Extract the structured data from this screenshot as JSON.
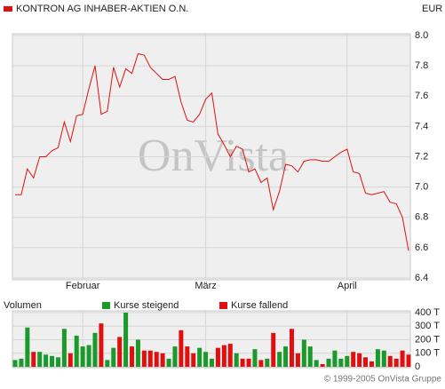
{
  "chart_data": [
    {
      "type": "line",
      "unit": "EUR",
      "categories": [
        null,
        null,
        null,
        null,
        null,
        null,
        null,
        null,
        null,
        null,
        null,
        "Februar",
        null,
        null,
        null,
        null,
        null,
        null,
        null,
        null,
        null,
        null,
        null,
        null,
        null,
        null,
        null,
        null,
        null,
        null,
        null,
        "März",
        null,
        null,
        null,
        null,
        null,
        null,
        null,
        null,
        null,
        null,
        null,
        null,
        null,
        null,
        null,
        null,
        null,
        null,
        null,
        null,
        null,
        null,
        "April",
        null,
        null,
        null,
        null,
        null,
        null,
        null,
        null,
        null,
        null
      ],
      "series": [
        {
          "name": "KONTRON AG INHABER-AKTIEN O.N.",
          "color": "#e01010",
          "values": [
            6.95,
            6.95,
            7.12,
            7.06,
            7.2,
            7.2,
            7.24,
            7.26,
            7.43,
            7.3,
            7.47,
            7.48,
            7.65,
            7.8,
            7.48,
            7.5,
            7.79,
            7.66,
            7.78,
            7.75,
            7.88,
            7.87,
            7.79,
            7.75,
            7.71,
            7.71,
            7.73,
            7.56,
            7.44,
            7.43,
            7.48,
            7.58,
            7.62,
            7.35,
            7.28,
            7.2,
            7.27,
            7.25,
            7.1,
            7.12,
            7.03,
            7.06,
            6.85,
            6.97,
            7.15,
            7.14,
            7.1,
            7.17,
            7.18,
            7.18,
            7.17,
            7.17,
            7.2,
            7.23,
            7.25,
            7.1,
            7.09,
            6.96,
            6.95,
            6.96,
            6.97,
            6.9,
            6.89,
            6.8,
            6.58
          ]
        }
      ],
      "ylim": [
        6.4,
        8.0
      ],
      "yticks": [
        6.4,
        6.6,
        6.8,
        {
          "value": 7,
          "label": "7.0"
        },
        7.2,
        7.4,
        7.6,
        7.8,
        {
          "value": 8,
          "label": "8.0"
        }
      ],
      "grid": true
    },
    {
      "type": "bar",
      "title": "Volumen",
      "series": [
        {
          "name": "Kurse steigend",
          "color": "#1a9a2a",
          "values": [
            50,
            60,
            290,
            null,
            110,
            90,
            80,
            70,
            280,
            null,
            230,
            150,
            160,
            250,
            null,
            50,
            140,
            null,
            400,
            null,
            200,
            null,
            null,
            null,
            null,
            60,
            150,
            null,
            null,
            null,
            140,
            110,
            60,
            null,
            null,
            null,
            100,
            null,
            null,
            130,
            null,
            60,
            null,
            110,
            150,
            null,
            null,
            200,
            150,
            50,
            null,
            60,
            120,
            60,
            80,
            null,
            null,
            null,
            null,
            130,
            120,
            null,
            null,
            null,
            null
          ]
        },
        {
          "name": "Kurse fallend",
          "color": "#e01010",
          "values": [
            null,
            null,
            null,
            110,
            null,
            null,
            null,
            null,
            null,
            100,
            null,
            null,
            null,
            null,
            320,
            null,
            null,
            220,
            null,
            150,
            null,
            120,
            120,
            110,
            100,
            null,
            null,
            270,
            150,
            100,
            null,
            null,
            null,
            140,
            160,
            170,
            null,
            60,
            60,
            null,
            50,
            null,
            250,
            null,
            null,
            280,
            100,
            null,
            null,
            null,
            20,
            null,
            null,
            null,
            null,
            110,
            100,
            70,
            40,
            null,
            null,
            80,
            60,
            120,
            90
          ]
        }
      ],
      "ylim": [
        0,
        400
      ],
      "yticks": [
        0,
        {
          "value": 100,
          "label": "100 T"
        },
        {
          "value": 200,
          "label": "200 T"
        },
        {
          "value": 300,
          "label": "300 T"
        },
        {
          "value": 400,
          "label": "400 T"
        }
      ],
      "grid": true
    }
  ],
  "watermark": "OnVista",
  "footer": "© 1999-2005 OnVista Gruppe"
}
